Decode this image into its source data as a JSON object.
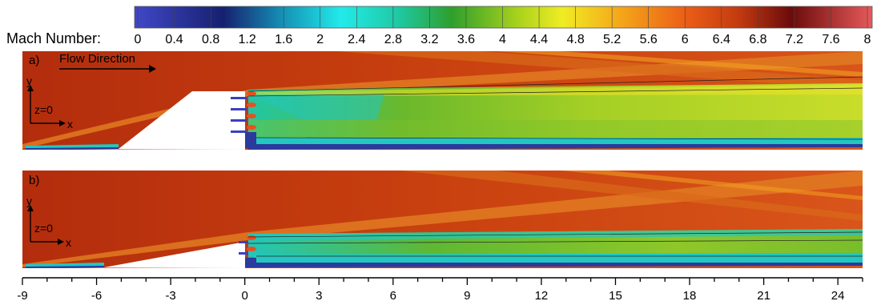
{
  "colorbar": {
    "label": "Mach Number:",
    "ticks": [
      "0",
      "0.4",
      "0.8",
      "1.2",
      "1.6",
      "2",
      "2.4",
      "2.8",
      "3.2",
      "3.6",
      "4",
      "4.4",
      "4.8",
      "5.2",
      "5.6",
      "6",
      "6.4",
      "6.8",
      "7.2",
      "7.6",
      "8"
    ],
    "range": [
      0,
      8
    ],
    "colors": [
      "#3a3fc4",
      "#0f1a66",
      "#0f8fb0",
      "#1fe8e8",
      "#1fc79a",
      "#2ea12a",
      "#b8d41a",
      "#f1ec22",
      "#f3a019",
      "#ea5a15",
      "#6b0a0a",
      "#e85a5a"
    ]
  },
  "panel_a": {
    "label": "a)",
    "flow_label": "Flow Direction",
    "axis_y": "y",
    "axis_x": "x",
    "plane": "z=0"
  },
  "panel_b": {
    "label": "b)",
    "axis_y": "y",
    "axis_x": "x",
    "plane": "z=0"
  },
  "x_axis": {
    "ticks": [
      "-9",
      "-6",
      "-3",
      "0",
      "3",
      "6",
      "9",
      "12",
      "15",
      "18",
      "21",
      "24"
    ],
    "range": [
      -9,
      25
    ]
  },
  "colors": {
    "freestream": "#b5300f",
    "shock": "#e8741e",
    "core": "#9fd023",
    "boundary": "#22c7c0",
    "wall": "#2b3a9c"
  }
}
